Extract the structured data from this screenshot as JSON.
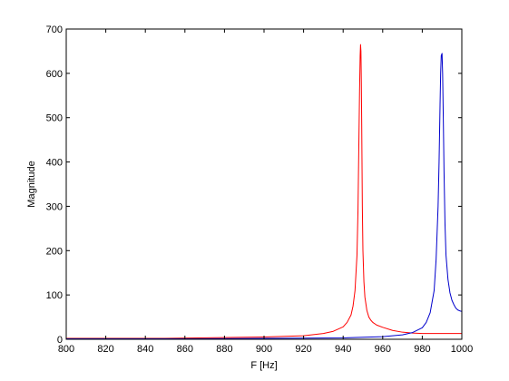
{
  "chart_data": {
    "type": "line",
    "title": "",
    "xlabel": "F [Hz]",
    "ylabel": "Magnitude",
    "xlim": [
      800,
      1000
    ],
    "ylim": [
      0,
      700
    ],
    "xticks": [
      800,
      820,
      840,
      860,
      880,
      900,
      920,
      940,
      960,
      980,
      1000
    ],
    "yticks": [
      0,
      100,
      200,
      300,
      400,
      500,
      600,
      700
    ],
    "grid": false,
    "legend": "none",
    "series": [
      {
        "color": "#ff0000",
        "x": [
          800,
          850,
          900,
          920,
          930,
          935,
          940,
          942,
          944,
          945,
          946,
          947,
          947.5,
          948,
          948.3,
          948.6,
          948.8,
          949,
          949.2,
          949.4,
          949.7,
          950,
          950.5,
          951,
          952,
          953,
          954,
          955,
          957,
          960,
          965,
          970,
          975,
          980,
          985,
          990,
          995,
          1000
        ],
        "y": [
          2,
          2,
          5,
          8,
          13,
          18,
          28,
          38,
          55,
          75,
          110,
          190,
          290,
          460,
          560,
          640,
          665,
          650,
          580,
          480,
          300,
          200,
          130,
          95,
          65,
          50,
          43,
          38,
          32,
          27,
          20,
          16,
          14,
          13,
          13,
          13,
          13,
          13
        ]
      },
      {
        "color": "#0000cc",
        "x": [
          800,
          860,
          900,
          940,
          960,
          970,
          975,
          980,
          982,
          984,
          986,
          987,
          988,
          988.5,
          989,
          989.3,
          989.6,
          990,
          990.3,
          990.7,
          991,
          991.5,
          992,
          993,
          994,
          995,
          996,
          997,
          998,
          999,
          1000
        ],
        "y": [
          1,
          1,
          2,
          3,
          6,
          10,
          15,
          26,
          38,
          60,
          110,
          180,
          300,
          400,
          530,
          600,
          640,
          645,
          600,
          480,
          380,
          260,
          190,
          135,
          105,
          88,
          78,
          70,
          66,
          64,
          63
        ]
      }
    ]
  }
}
